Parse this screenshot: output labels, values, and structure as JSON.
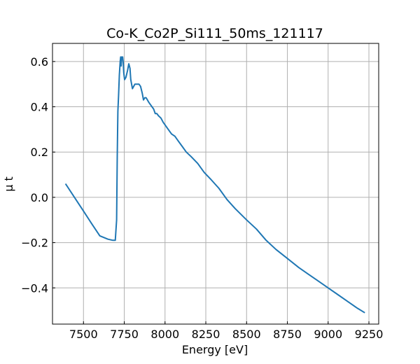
{
  "chart_data": {
    "type": "line",
    "title": "Co-K_Co2P_Si111_50ms_121117",
    "xlabel": "Energy [eV]",
    "ylabel": "μ t",
    "xlim": [
      7310,
      9310
    ],
    "ylim": [
      -0.56,
      0.68
    ],
    "grid": true,
    "line_color": "#1f77b4",
    "x_ticks": [
      {
        "value": 7500,
        "label": "7500"
      },
      {
        "value": 7750,
        "label": "7750"
      },
      {
        "value": 8000,
        "label": "8000"
      },
      {
        "value": 8250,
        "label": "8250"
      },
      {
        "value": 8500,
        "label": "8500"
      },
      {
        "value": 8750,
        "label": "8750"
      },
      {
        "value": 9000,
        "label": "9000"
      },
      {
        "value": 9250,
        "label": "9250"
      }
    ],
    "y_ticks": [
      {
        "value": -0.4,
        "label": "−0.4"
      },
      {
        "value": -0.2,
        "label": "−0.2"
      },
      {
        "value": 0.0,
        "label": "0.0"
      },
      {
        "value": 0.2,
        "label": "0.2"
      },
      {
        "value": 0.4,
        "label": "0.4"
      },
      {
        "value": 0.6,
        "label": "0.6"
      }
    ],
    "series": [
      {
        "x": [
          7390,
          7450,
          7500,
          7550,
          7600,
          7650,
          7680,
          7695,
          7703,
          7707,
          7711,
          7715,
          7720,
          7725,
          7728,
          7731,
          7734,
          7737,
          7740,
          7743,
          7747,
          7752,
          7760,
          7770,
          7778,
          7785,
          7790,
          7795,
          7800,
          7808,
          7815,
          7822,
          7830,
          7840,
          7850,
          7860,
          7868,
          7876,
          7884,
          7892,
          7900,
          7910,
          7920,
          7930,
          7940,
          7950,
          7960,
          7975,
          7990,
          8000,
          8020,
          8040,
          8060,
          8080,
          8100,
          8130,
          8160,
          8200,
          8240,
          8280,
          8330,
          8380,
          8430,
          8500,
          8560,
          8620,
          8680,
          8750,
          8820,
          8880,
          8940,
          9000,
          9060,
          9120,
          9180,
          9225
        ],
        "y": [
          0.06,
          -0.006,
          -0.061,
          -0.116,
          -0.17,
          -0.185,
          -0.19,
          -0.19,
          -0.1,
          0.18,
          0.38,
          0.45,
          0.54,
          0.6,
          0.62,
          0.58,
          0.62,
          0.61,
          0.62,
          0.6,
          0.55,
          0.52,
          0.53,
          0.56,
          0.59,
          0.57,
          0.52,
          0.5,
          0.48,
          0.49,
          0.5,
          0.5,
          0.5,
          0.5,
          0.49,
          0.46,
          0.43,
          0.44,
          0.44,
          0.43,
          0.42,
          0.41,
          0.4,
          0.39,
          0.37,
          0.37,
          0.36,
          0.35,
          0.33,
          0.32,
          0.3,
          0.28,
          0.27,
          0.25,
          0.23,
          0.2,
          0.18,
          0.15,
          0.11,
          0.08,
          0.04,
          -0.01,
          -0.05,
          -0.1,
          -0.14,
          -0.19,
          -0.23,
          -0.27,
          -0.31,
          -0.34,
          -0.37,
          -0.4,
          -0.43,
          -0.46,
          -0.49,
          -0.51
        ]
      }
    ]
  }
}
